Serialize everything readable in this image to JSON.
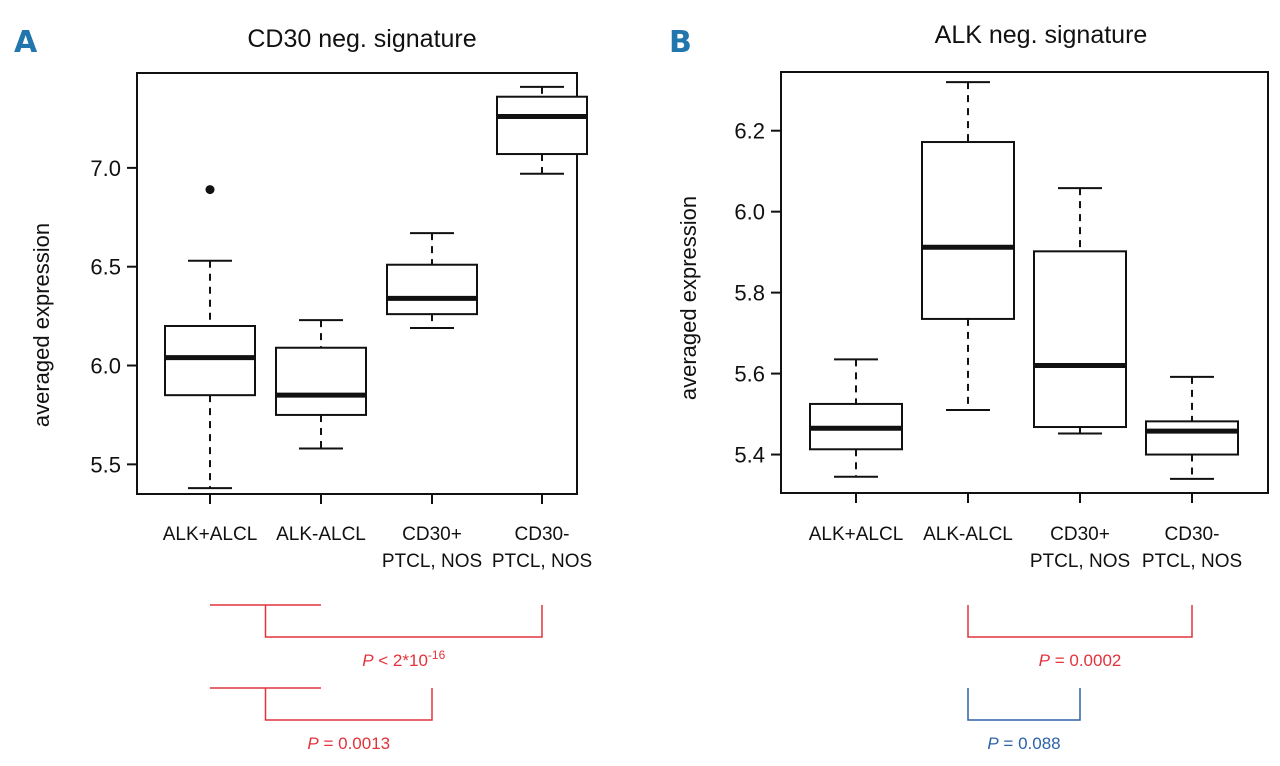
{
  "chart_data": [
    {
      "type": "box",
      "panel": "A",
      "title": "CD30 neg. signature",
      "xlabel": "",
      "ylabel": "averaged expression",
      "ylim": [
        5.35,
        7.48
      ],
      "yticks": [
        "5.5",
        "6.0",
        "6.5",
        "7.0"
      ],
      "categories": [
        [
          "ALK+ALCL"
        ],
        [
          "ALK-ALCL"
        ],
        [
          "CD30+",
          "PTCL, NOS"
        ],
        [
          "CD30-",
          "PTCL, NOS"
        ]
      ],
      "boxes": [
        {
          "whisker_low": 5.38,
          "q1": 5.85,
          "median": 6.04,
          "q3": 6.2,
          "whisker_high": 6.53,
          "outliers": [
            6.89
          ]
        },
        {
          "whisker_low": 5.58,
          "q1": 5.75,
          "median": 5.85,
          "q3": 6.09,
          "whisker_high": 6.23,
          "outliers": []
        },
        {
          "whisker_low": 6.19,
          "q1": 6.26,
          "median": 6.34,
          "q3": 6.51,
          "whisker_high": 6.67,
          "outliers": []
        },
        {
          "whisker_low": 6.97,
          "q1": 7.07,
          "median": 7.26,
          "q3": 7.36,
          "whisker_high": 7.41,
          "outliers": []
        }
      ],
      "comparisons": [
        {
          "from": 0,
          "from_end": 1,
          "to": 3,
          "p_prefix": "P",
          "p_text": " < 2*10",
          "p_sup": "-16",
          "color": "#e2333c"
        },
        {
          "from": 0,
          "from_end": 1,
          "to": 2,
          "p_prefix": "P",
          "p_text": " = 0.0013",
          "p_sup": "",
          "color": "#e2333c"
        }
      ]
    },
    {
      "type": "box",
      "panel": "B",
      "title": "ALK neg. signature",
      "xlabel": "",
      "ylabel": "averaged expression",
      "ylim": [
        5.305,
        6.345
      ],
      "yticks": [
        "5.4",
        "5.6",
        "5.8",
        "6.0",
        "6.2"
      ],
      "categories": [
        [
          "ALK+ALCL"
        ],
        [
          "ALK-ALCL"
        ],
        [
          "CD30+",
          "PTCL, NOS"
        ],
        [
          "CD30-",
          "PTCL, NOS"
        ]
      ],
      "boxes": [
        {
          "whisker_low": 5.345,
          "q1": 5.413,
          "median": 5.465,
          "q3": 5.525,
          "whisker_high": 5.635,
          "outliers": []
        },
        {
          "whisker_low": 5.51,
          "q1": 5.735,
          "median": 5.912,
          "q3": 6.172,
          "whisker_high": 6.32,
          "outliers": []
        },
        {
          "whisker_low": 5.452,
          "q1": 5.468,
          "median": 5.62,
          "q3": 5.902,
          "whisker_high": 6.058,
          "outliers": []
        },
        {
          "whisker_low": 5.34,
          "q1": 5.4,
          "median": 5.458,
          "q3": 5.482,
          "whisker_high": 5.592,
          "outliers": []
        }
      ],
      "comparisons": [
        {
          "from": 1,
          "to": 3,
          "p_prefix": "P",
          "p_text": " = 0.0002",
          "p_sup": "",
          "color": "#e2333c"
        },
        {
          "from": 1,
          "to": 2,
          "p_prefix": "P",
          "p_text": " = 0.088",
          "p_sup": "",
          "color": "#2b63a8"
        }
      ]
    }
  ],
  "colors": {
    "panel_letter": "#2176ae",
    "red": "#e2333c",
    "blue": "#2b63a8"
  }
}
